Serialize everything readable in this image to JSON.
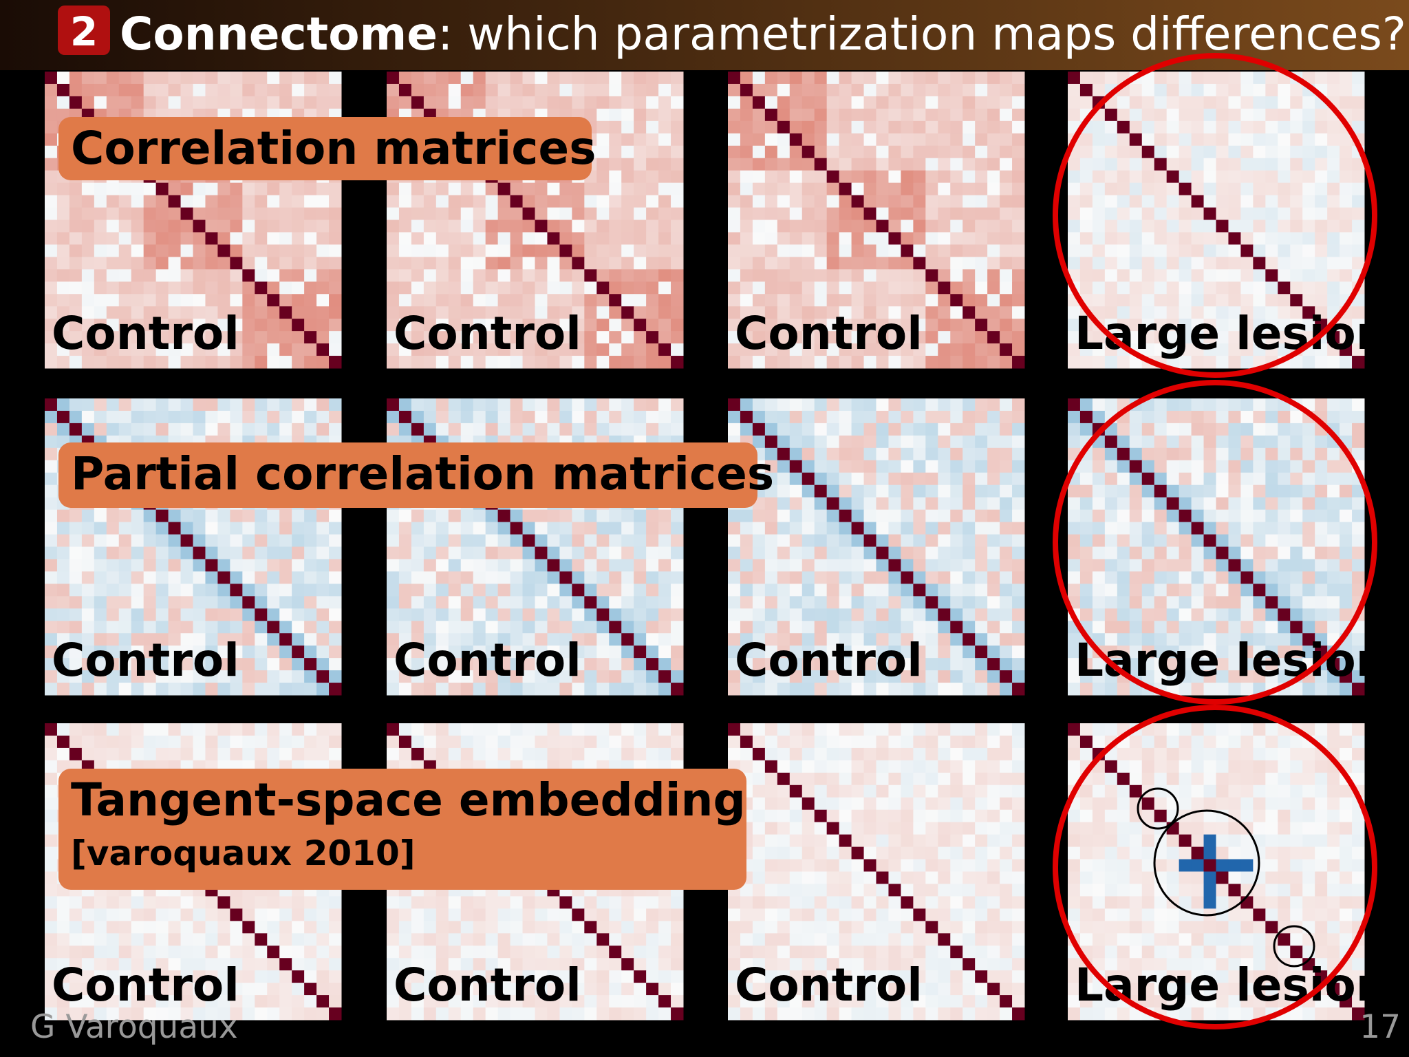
{
  "header": {
    "badge": "2",
    "title_bold": "Connectome",
    "title_rest": ": which parametrization maps differences?"
  },
  "rows": [
    {
      "label": "Correlation matrices",
      "panels": [
        "Control",
        "Control",
        "Control",
        "Large lesion"
      ]
    },
    {
      "label": "Partial correlation matrices",
      "panels": [
        "Control",
        "Control",
        "Control",
        "Large lesion"
      ]
    },
    {
      "label": "Tangent-space embedding",
      "sublabel": "[varoquaux 2010]",
      "panels": [
        "Control",
        "Control",
        "Control",
        "Large lesion"
      ]
    }
  ],
  "footer": {
    "author": "G Varoquaux",
    "page": "17"
  }
}
